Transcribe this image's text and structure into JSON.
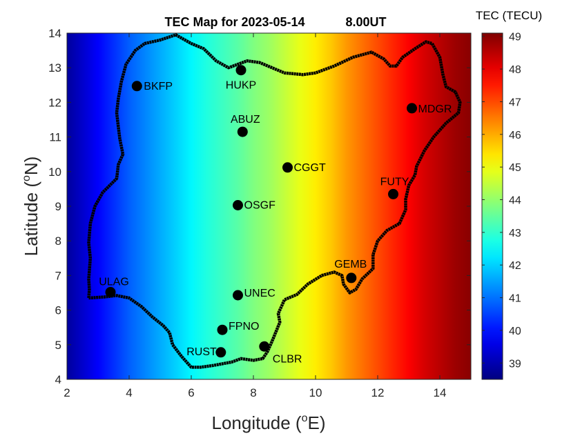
{
  "title": {
    "map_label": "TEC Map for 2023-05-14",
    "time_label": "8.00UT"
  },
  "axes": {
    "xlabel_main": "Longitude (",
    "xlabel_sup": "o",
    "xlabel_end": "E)",
    "ylabel_main": "Latitude (",
    "ylabel_sup": "o",
    "ylabel_end": "N)",
    "xticks": [
      "2",
      "4",
      "6",
      "8",
      "10",
      "12",
      "14"
    ],
    "yticks": [
      "4",
      "5",
      "6",
      "7",
      "8",
      "9",
      "10",
      "11",
      "12",
      "13",
      "14"
    ]
  },
  "colorbar": {
    "label": "TEC (TECU)",
    "ticks": [
      "39",
      "40",
      "41",
      "42",
      "43",
      "44",
      "45",
      "46",
      "47",
      "48",
      "49"
    ]
  },
  "map_data": {
    "x_range": [
      2,
      15
    ],
    "y_range": [
      4,
      14
    ],
    "tec_range": [
      38.5,
      49.1
    ],
    "tec_gradient_lon": [
      2.0,
      2.5,
      3.0,
      3.5,
      4.0,
      4.5,
      5.0,
      5.5,
      6.0,
      6.5,
      7.0,
      7.5,
      8.0,
      8.5,
      9.0,
      9.5,
      10.0,
      10.5,
      11.0,
      11.5,
      12.0,
      12.5,
      13.0,
      13.5,
      14.0,
      14.5,
      15.0
    ],
    "tec_gradient_val": [
      38.8,
      39.3,
      39.8,
      40.3,
      40.8,
      41.2,
      41.6,
      42.0,
      42.4,
      42.8,
      43.1,
      43.4,
      43.8,
      44.1,
      44.5,
      44.9,
      45.3,
      45.7,
      46.2,
      46.6,
      47.0,
      47.4,
      47.8,
      48.2,
      48.5,
      48.8,
      49.0
    ],
    "stations": [
      {
        "name": "BKFP",
        "lon": 4.25,
        "lat": 12.47
      },
      {
        "name": "HUKP",
        "lon": 7.6,
        "lat": 12.93
      },
      {
        "name": "MDGR",
        "lon": 13.1,
        "lat": 11.83
      },
      {
        "name": "ABUZ",
        "lon": 7.65,
        "lat": 11.15
      },
      {
        "name": "CGGT",
        "lon": 9.1,
        "lat": 10.12
      },
      {
        "name": "FUTY",
        "lon": 12.5,
        "lat": 9.35
      },
      {
        "name": "OSGF",
        "lon": 7.5,
        "lat": 9.03
      },
      {
        "name": "GEMB",
        "lon": 11.15,
        "lat": 6.93
      },
      {
        "name": "ULAG",
        "lon": 3.4,
        "lat": 6.52
      },
      {
        "name": "UNEC",
        "lon": 7.5,
        "lat": 6.43
      },
      {
        "name": "FPNO",
        "lon": 7.0,
        "lat": 5.43
      },
      {
        "name": "CLBR",
        "lon": 8.35,
        "lat": 4.95
      },
      {
        "name": "RUST",
        "lon": 6.95,
        "lat": 4.78
      }
    ],
    "border": [
      [
        2.7,
        6.35
      ],
      [
        2.72,
        6.6
      ],
      [
        2.7,
        6.9
      ],
      [
        2.75,
        7.5
      ],
      [
        2.7,
        7.95
      ],
      [
        2.75,
        8.5
      ],
      [
        2.9,
        9.0
      ],
      [
        3.15,
        9.4
      ],
      [
        3.6,
        9.8
      ],
      [
        3.65,
        10.2
      ],
      [
        3.8,
        10.5
      ],
      [
        3.7,
        10.95
      ],
      [
        3.65,
        11.3
      ],
      [
        3.6,
        11.7
      ],
      [
        3.65,
        12.1
      ],
      [
        3.75,
        12.6
      ],
      [
        3.9,
        13.1
      ],
      [
        4.2,
        13.5
      ],
      [
        4.5,
        13.7
      ],
      [
        5.0,
        13.8
      ],
      [
        5.5,
        13.95
      ],
      [
        6.0,
        13.7
      ],
      [
        6.4,
        13.55
      ],
      [
        6.8,
        13.2
      ],
      [
        7.2,
        13.0
      ],
      [
        7.8,
        13.2
      ],
      [
        8.2,
        13.15
      ],
      [
        8.6,
        13.0
      ],
      [
        9.0,
        12.85
      ],
      [
        9.6,
        12.8
      ],
      [
        10.0,
        12.85
      ],
      [
        10.6,
        13.05
      ],
      [
        11.2,
        13.3
      ],
      [
        11.8,
        13.45
      ],
      [
        12.2,
        13.25
      ],
      [
        12.4,
        13.05
      ],
      [
        12.6,
        13.05
      ],
      [
        12.8,
        13.3
      ],
      [
        13.2,
        13.55
      ],
      [
        13.55,
        13.75
      ],
      [
        13.75,
        13.7
      ],
      [
        14.0,
        13.3
      ],
      [
        14.1,
        12.8
      ],
      [
        14.2,
        12.45
      ],
      [
        14.5,
        12.3
      ],
      [
        14.65,
        12.0
      ],
      [
        14.6,
        11.7
      ],
      [
        14.2,
        11.4
      ],
      [
        13.8,
        11.0
      ],
      [
        13.5,
        10.6
      ],
      [
        13.25,
        10.15
      ],
      [
        13.2,
        9.9
      ],
      [
        13.0,
        9.6
      ],
      [
        12.9,
        9.2
      ],
      [
        12.9,
        8.9
      ],
      [
        12.7,
        8.5
      ],
      [
        12.3,
        8.3
      ],
      [
        12.0,
        8.0
      ],
      [
        11.85,
        7.6
      ],
      [
        11.85,
        7.2
      ],
      [
        11.5,
        6.9
      ],
      [
        11.3,
        6.6
      ],
      [
        11.1,
        6.5
      ],
      [
        10.9,
        6.75
      ],
      [
        10.85,
        7.0
      ],
      [
        10.6,
        7.1
      ],
      [
        10.2,
        7.0
      ],
      [
        9.75,
        6.75
      ],
      [
        9.4,
        6.45
      ],
      [
        9.0,
        6.3
      ],
      [
        8.8,
        5.9
      ],
      [
        8.85,
        5.65
      ],
      [
        8.6,
        5.1
      ],
      [
        8.45,
        4.8
      ],
      [
        8.3,
        4.6
      ],
      [
        8.0,
        4.55
      ],
      [
        7.6,
        4.6
      ],
      [
        7.3,
        4.5
      ],
      [
        7.0,
        4.45
      ],
      [
        6.7,
        4.4
      ],
      [
        6.3,
        4.35
      ],
      [
        6.0,
        4.35
      ],
      [
        5.7,
        4.65
      ],
      [
        5.4,
        5.0
      ],
      [
        5.3,
        5.35
      ],
      [
        5.1,
        5.55
      ],
      [
        4.75,
        5.8
      ],
      [
        4.4,
        6.1
      ],
      [
        4.0,
        6.35
      ],
      [
        3.6,
        6.42
      ],
      [
        3.2,
        6.38
      ],
      [
        2.7,
        6.35
      ]
    ]
  }
}
